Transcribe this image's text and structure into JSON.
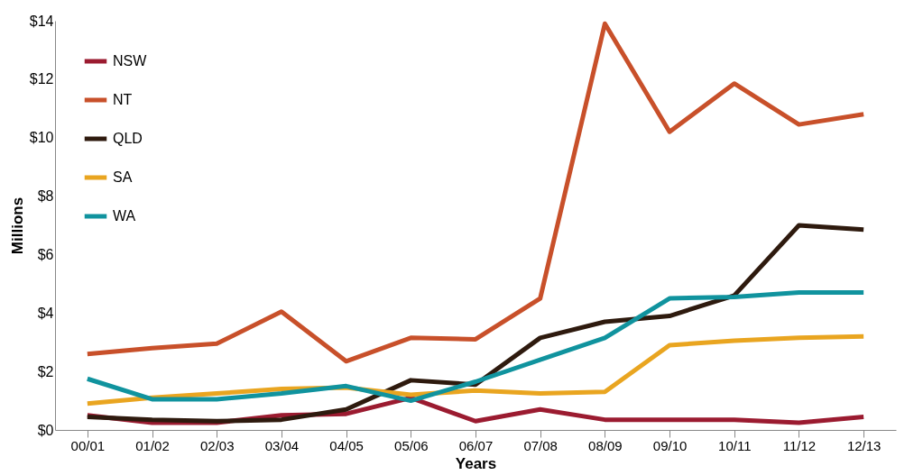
{
  "chart_data": {
    "type": "line",
    "xlabel": "Years",
    "ylabel": "Millions",
    "categories": [
      "00/01",
      "01/02",
      "02/03",
      "03/04",
      "04/05",
      "05/06",
      "06/07",
      "07/08",
      "08/09",
      "09/10",
      "10/11",
      "11/12",
      "12/13"
    ],
    "series": [
      {
        "name": "NSW",
        "color": "#9b1b30",
        "values": [
          0.5,
          0.25,
          0.25,
          0.5,
          0.55,
          1.1,
          0.3,
          0.7,
          0.35,
          0.35,
          0.35,
          0.25,
          0.45
        ]
      },
      {
        "name": "NT",
        "color": "#c8502a",
        "values": [
          2.6,
          2.8,
          2.95,
          4.05,
          2.35,
          3.15,
          3.1,
          4.5,
          13.9,
          10.2,
          11.85,
          10.45,
          10.8
        ]
      },
      {
        "name": "QLD",
        "color": "#2e1a0e",
        "values": [
          0.45,
          0.35,
          0.3,
          0.35,
          0.7,
          1.7,
          1.55,
          3.15,
          3.7,
          3.9,
          4.6,
          7.0,
          6.85
        ]
      },
      {
        "name": "SA",
        "color": "#e9a520",
        "values": [
          0.9,
          1.1,
          1.25,
          1.4,
          1.45,
          1.2,
          1.35,
          1.25,
          1.3,
          2.9,
          3.05,
          3.15,
          3.2
        ]
      },
      {
        "name": "WA",
        "color": "#10939e",
        "values": [
          1.75,
          1.05,
          1.05,
          1.25,
          1.5,
          1.0,
          1.65,
          2.4,
          3.15,
          4.5,
          4.55,
          4.7,
          4.7
        ]
      }
    ],
    "ylim": [
      0,
      14
    ],
    "yticks": [
      {
        "value": 0,
        "label": "$0"
      },
      {
        "value": 2,
        "label": "$2"
      },
      {
        "value": 4,
        "label": "$4"
      },
      {
        "value": 6,
        "label": "$6"
      },
      {
        "value": 8,
        "label": "$8"
      },
      {
        "value": 10,
        "label": "$10"
      },
      {
        "value": 12,
        "label": "$12"
      },
      {
        "value": 14,
        "label": "$14"
      }
    ],
    "legend": "top left",
    "grid": false,
    "marker": "none",
    "line_style": "solid"
  }
}
